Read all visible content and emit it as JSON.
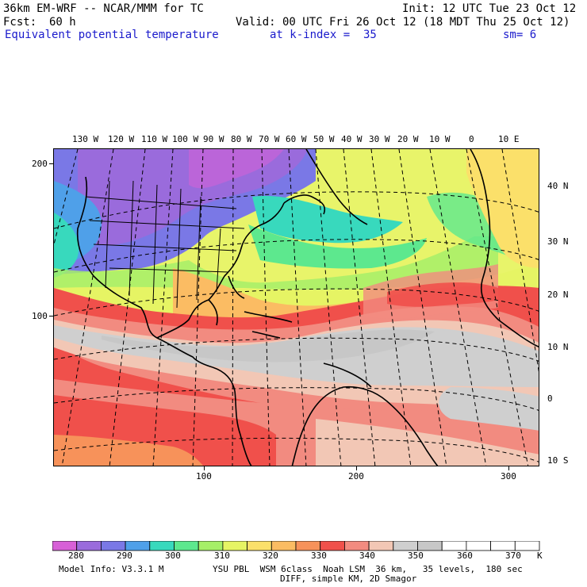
{
  "header": {
    "model": "36km EM-WRF -- NCAR/MMM for TC",
    "init": "Init: 12 UTC Tue 23 Oct 12",
    "fcst_label": "Fcst:",
    "fcst_value": "60 h",
    "valid": "Valid: 00 UTC Fri 26 Oct 12 (18 MDT Thu 25 Oct 12)",
    "field": "Equivalent potential temperature",
    "level": "at k-index =  35",
    "sm": "sm= 6"
  },
  "map": {
    "top_lon_labels": [
      "130 W",
      "120 W",
      "110 W",
      "100 W",
      "90 W",
      "80 W",
      "70 W",
      "60 W",
      "50 W",
      "40 W",
      "30 W",
      "20 W",
      "10 W",
      "0",
      "10 E"
    ],
    "right_lat_labels": [
      "40 N",
      "30 N",
      "20 N",
      "10 N",
      "0",
      "10 S"
    ],
    "left_axis_labels": [
      "200",
      "100"
    ],
    "bottom_axis_labels": [
      "100",
      "200",
      "300"
    ]
  },
  "legend": {
    "labels": [
      "280",
      "290",
      "300",
      "310",
      "320",
      "330",
      "340",
      "350",
      "360",
      "370",
      "K"
    ],
    "colors": [
      "#d760d7",
      "#9a6bdc",
      "#7a78e6",
      "#4fa0e9",
      "#38d9bd",
      "#5de88e",
      "#a6ef68",
      "#e6f464",
      "#fbe06a",
      "#fbbc63",
      "#f7925a",
      "#f0504b",
      "#f28b80",
      "#f2c7b5",
      "#cfcfcf",
      "#c7c7c7",
      "#ffffff",
      "#ffffff",
      "#ffffff",
      "#ffffff"
    ]
  },
  "footer": {
    "line1_left": "Model Info: V3.3.1 M",
    "line1_right": "YSU PBL  WSM 6class  Noah LSM  36 km,   35 levels,  180 sec",
    "line2": "DIFF, simple KM, 2D Smagor"
  }
}
